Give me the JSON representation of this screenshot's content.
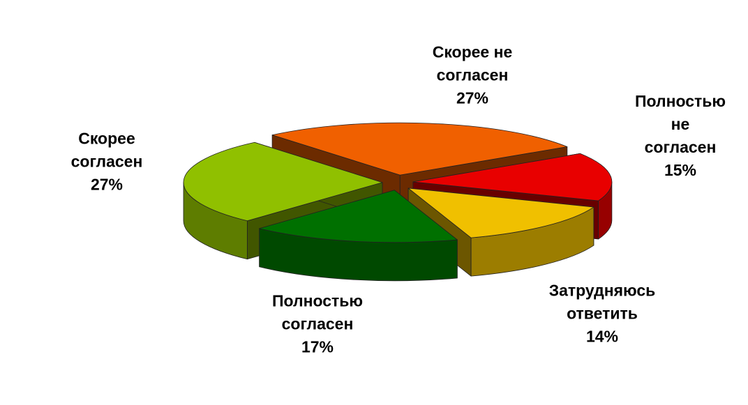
{
  "chart_data": {
    "type": "pie3d",
    "categories": [
      "Скорее не\nсогласен",
      "Полностью\nне согласен",
      "Затрудняюсь\nответить",
      "Полностью\nсогласен",
      "Скорее\nсогласен"
    ],
    "values": [
      27,
      15,
      14,
      17,
      27
    ],
    "value_labels": [
      "27%",
      "15%",
      "14%",
      "17%",
      "27%"
    ],
    "colors": [
      "#f06000",
      "#e80000",
      "#f0c000",
      "#007000",
      "#90c000"
    ]
  }
}
